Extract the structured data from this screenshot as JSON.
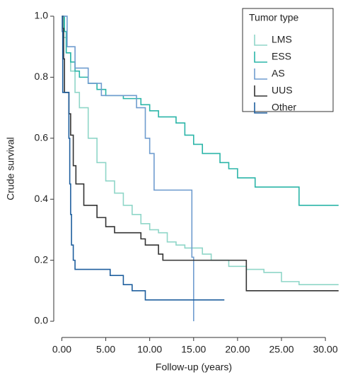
{
  "chart_data": {
    "type": "step",
    "x_label": "Follow-up (years)",
    "y_label": "Crude survival",
    "legend_title": "Tumor type",
    "legend": "top-right",
    "xlim": [
      -0.6,
      31.6
    ],
    "ylim": [
      -0.03,
      1.03
    ],
    "xticks": [
      {
        "value": 0,
        "label": "0.00"
      },
      {
        "value": 5,
        "label": "5.00"
      },
      {
        "value": 10,
        "label": "10.00"
      },
      {
        "value": 15,
        "label": "15.00"
      },
      {
        "value": 20,
        "label": "20.00"
      },
      {
        "value": 25,
        "label": "25.00"
      },
      {
        "value": 30,
        "label": "30.00"
      }
    ],
    "yticks": [
      {
        "value": 0,
        "label": "0.0"
      },
      0.2,
      0.4,
      0.6,
      0.8,
      {
        "value": 1,
        "label": "1.0"
      }
    ],
    "series": [
      {
        "name": "LMS",
        "color": "#8fd6c8",
        "x": [
          0,
          0.2,
          0.5,
          1,
          1.5,
          2,
          3,
          4,
          5,
          6,
          7,
          8,
          9,
          10,
          11,
          12,
          13,
          14,
          16,
          17,
          19,
          21,
          23,
          25,
          27,
          31.5
        ],
        "values": [
          1,
          0.93,
          0.88,
          0.82,
          0.75,
          0.7,
          0.6,
          0.52,
          0.46,
          0.42,
          0.38,
          0.35,
          0.32,
          0.3,
          0.29,
          0.26,
          0.25,
          0.24,
          0.22,
          0.2,
          0.18,
          0.17,
          0.16,
          0.13,
          0.12,
          0.12
        ]
      },
      {
        "name": "ESS",
        "color": "#2bb5a8",
        "x": [
          0,
          0.3,
          0.5,
          1,
          1.5,
          2,
          3,
          4,
          5,
          7,
          9,
          10,
          11,
          13,
          14,
          15,
          16,
          18,
          19,
          20,
          22,
          27,
          31.5
        ],
        "values": [
          1,
          0.95,
          0.88,
          0.85,
          0.82,
          0.8,
          0.78,
          0.76,
          0.74,
          0.73,
          0.71,
          0.69,
          0.67,
          0.65,
          0.61,
          0.58,
          0.55,
          0.52,
          0.5,
          0.47,
          0.44,
          0.38,
          0.38
        ]
      },
      {
        "name": "AS",
        "color": "#6f9ccf",
        "x": [
          0,
          0.6,
          1.5,
          3,
          4.5,
          8.5,
          9.5,
          10,
          10.5,
          14.8,
          15
        ],
        "values": [
          1,
          0.9,
          0.83,
          0.78,
          0.74,
          0.7,
          0.6,
          0.55,
          0.43,
          0.21,
          0
        ]
      },
      {
        "name": "UUS",
        "color": "#333333",
        "x": [
          0,
          0.1,
          0.2,
          0.3,
          0.8,
          1,
          1.3,
          1.6,
          2.5,
          4,
          5,
          6,
          9,
          9.5,
          11,
          11.5,
          21,
          31.5
        ],
        "values": [
          1,
          0.96,
          0.86,
          0.75,
          0.68,
          0.61,
          0.51,
          0.45,
          0.38,
          0.34,
          0.31,
          0.29,
          0.27,
          0.25,
          0.22,
          0.2,
          0.1,
          0.1
        ]
      },
      {
        "name": "Other",
        "color": "#1f5f9e",
        "x": [
          0,
          0.05,
          0.1,
          0.8,
          0.9,
          1,
          1.1,
          1.3,
          1.5,
          5.5,
          7,
          8,
          9.5,
          18.5
        ],
        "values": [
          1,
          0.95,
          0.75,
          0.6,
          0.45,
          0.35,
          0.25,
          0.2,
          0.17,
          0.15,
          0.12,
          0.1,
          0.07,
          0.07
        ]
      }
    ]
  }
}
